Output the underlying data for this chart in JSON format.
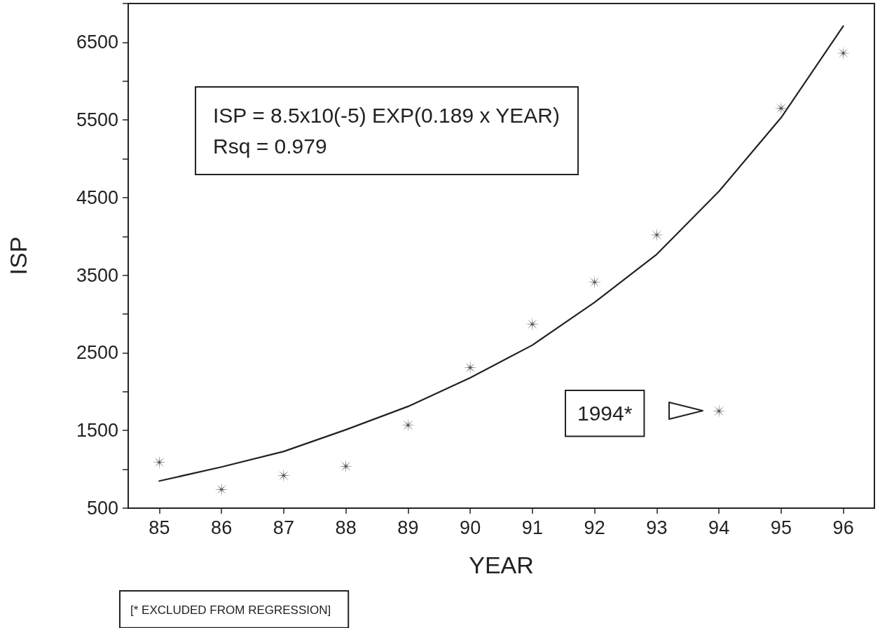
{
  "chart_data": {
    "type": "scatter",
    "xlabel": "YEAR",
    "ylabel": "ISP",
    "x": [
      85,
      86,
      87,
      88,
      89,
      90,
      91,
      92,
      93,
      94,
      95,
      96
    ],
    "series": [
      {
        "type": "scatter",
        "color": "#222222",
        "marker": "cross",
        "values": [
          1090,
          740,
          920,
          1040,
          1570,
          2310,
          2870,
          3410,
          4020,
          1750,
          5650,
          6360
        ]
      },
      {
        "type": "line",
        "color": "#222222",
        "marker": "none",
        "line_style": "solid",
        "x": [
          85,
          86,
          87,
          88,
          89,
          90,
          91,
          92,
          93,
          94,
          95,
          96
        ],
        "values": [
          850,
          1030,
          1230,
          1510,
          1810,
          2180,
          2600,
          3150,
          3770,
          4580,
          5530,
          6710
        ]
      }
    ],
    "xlim": [
      84.5,
      96.5
    ],
    "xticks": [
      85,
      86,
      87,
      88,
      89,
      90,
      91,
      92,
      93,
      94,
      95,
      96
    ],
    "ylim": [
      500,
      7000
    ],
    "yticks": [
      500,
      {
        "value": 1000,
        "label": null
      },
      1500,
      {
        "value": 2000,
        "label": null
      },
      2500,
      {
        "value": 3000,
        "label": null
      },
      3500,
      {
        "value": 4000,
        "label": null
      },
      4500,
      {
        "value": 5000,
        "label": null
      },
      5500,
      {
        "value": 6000,
        "label": null
      },
      6500,
      {
        "value": 7000,
        "label": null
      }
    ],
    "grid": false,
    "annotations": [
      "ISP = 8.5x10(-5) EXP(0.189 x YEAR)\nRsq = 0.979",
      "1994*",
      "[* EXCLUDED FROM REGRESSION]"
    ]
  }
}
